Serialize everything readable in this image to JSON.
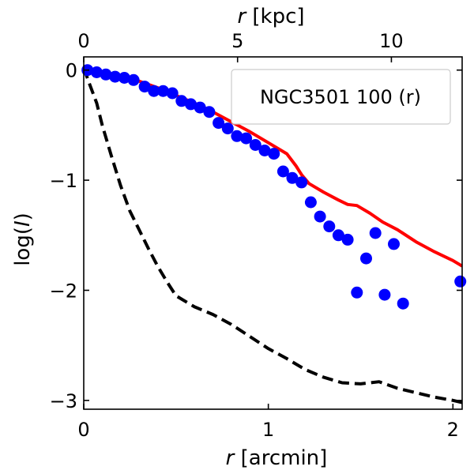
{
  "chart_data": {
    "type": "scatter",
    "xlabel_var": "r",
    "xlabel_unit": " [arcmin]",
    "x2label_var": "r",
    "x2label_unit": " [kpc]",
    "ylabel_prefix": "log(",
    "ylabel_var": "I",
    "ylabel_suffix": ")",
    "xlim": [
      0,
      2.05
    ],
    "ylim": [
      -3.08,
      0.12
    ],
    "x2lim": [
      0,
      12.3
    ],
    "xticks": [
      {
        "value": 0,
        "label": "0"
      },
      {
        "value": 1,
        "label": "1"
      },
      {
        "value": 2,
        "label": "2"
      }
    ],
    "x2ticks": [
      {
        "value": 0,
        "label": "0"
      },
      {
        "value": 5,
        "label": "5"
      },
      {
        "value": 10,
        "label": "10"
      }
    ],
    "yticks": [
      {
        "value": 0,
        "label": "0"
      },
      {
        "value": -1,
        "label": "−1"
      },
      {
        "value": -2,
        "label": "−2"
      },
      {
        "value": -3,
        "label": "−3"
      }
    ],
    "legend_text": "NGC3501 100 (r)",
    "legend_position": "top-right",
    "colors": {
      "points": "#0000ff",
      "model": "#ff0000",
      "psf": "#000000"
    },
    "series": [
      {
        "name": "data",
        "type": "scatter",
        "points": [
          {
            "x": 0.02,
            "y": 0.0
          },
          {
            "x": 0.07,
            "y": -0.02
          },
          {
            "x": 0.12,
            "y": -0.04
          },
          {
            "x": 0.17,
            "y": -0.06
          },
          {
            "x": 0.22,
            "y": -0.07
          },
          {
            "x": 0.27,
            "y": -0.09
          },
          {
            "x": 0.33,
            "y": -0.15
          },
          {
            "x": 0.38,
            "y": -0.19
          },
          {
            "x": 0.43,
            "y": -0.19
          },
          {
            "x": 0.48,
            "y": -0.21
          },
          {
            "x": 0.53,
            "y": -0.28
          },
          {
            "x": 0.58,
            "y": -0.31
          },
          {
            "x": 0.63,
            "y": -0.34
          },
          {
            "x": 0.68,
            "y": -0.38
          },
          {
            "x": 0.73,
            "y": -0.48
          },
          {
            "x": 0.78,
            "y": -0.53
          },
          {
            "x": 0.83,
            "y": -0.6
          },
          {
            "x": 0.88,
            "y": -0.62
          },
          {
            "x": 0.93,
            "y": -0.68
          },
          {
            "x": 0.98,
            "y": -0.73
          },
          {
            "x": 1.03,
            "y": -0.76
          },
          {
            "x": 1.08,
            "y": -0.92
          },
          {
            "x": 1.13,
            "y": -0.98
          },
          {
            "x": 1.18,
            "y": -1.02
          },
          {
            "x": 1.23,
            "y": -1.2
          },
          {
            "x": 1.28,
            "y": -1.33
          },
          {
            "x": 1.33,
            "y": -1.42
          },
          {
            "x": 1.38,
            "y": -1.5
          },
          {
            "x": 1.43,
            "y": -1.54
          },
          {
            "x": 1.48,
            "y": -2.02
          },
          {
            "x": 1.53,
            "y": -1.71
          },
          {
            "x": 1.58,
            "y": -1.48
          },
          {
            "x": 1.63,
            "y": -2.04
          },
          {
            "x": 1.68,
            "y": -1.58
          },
          {
            "x": 1.73,
            "y": -2.12
          },
          {
            "x": 2.04,
            "y": -1.92
          }
        ]
      },
      {
        "name": "model",
        "type": "line",
        "points": [
          {
            "x": 0.0,
            "y": 0.02
          },
          {
            "x": 0.1,
            "y": -0.02
          },
          {
            "x": 0.2,
            "y": -0.06
          },
          {
            "x": 0.3,
            "y": -0.1
          },
          {
            "x": 0.4,
            "y": -0.16
          },
          {
            "x": 0.5,
            "y": -0.23
          },
          {
            "x": 0.6,
            "y": -0.3
          },
          {
            "x": 0.7,
            "y": -0.38
          },
          {
            "x": 0.8,
            "y": -0.47
          },
          {
            "x": 0.9,
            "y": -0.56
          },
          {
            "x": 1.0,
            "y": -0.66
          },
          {
            "x": 1.1,
            "y": -0.76
          },
          {
            "x": 1.15,
            "y": -0.87
          },
          {
            "x": 1.18,
            "y": -0.95
          },
          {
            "x": 1.22,
            "y": -1.03
          },
          {
            "x": 1.3,
            "y": -1.11
          },
          {
            "x": 1.38,
            "y": -1.18
          },
          {
            "x": 1.43,
            "y": -1.22
          },
          {
            "x": 1.48,
            "y": -1.23
          },
          {
            "x": 1.55,
            "y": -1.3
          },
          {
            "x": 1.62,
            "y": -1.38
          },
          {
            "x": 1.7,
            "y": -1.45
          },
          {
            "x": 1.8,
            "y": -1.56
          },
          {
            "x": 1.9,
            "y": -1.65
          },
          {
            "x": 2.0,
            "y": -1.73
          },
          {
            "x": 2.05,
            "y": -1.78
          }
        ]
      },
      {
        "name": "psf",
        "type": "line",
        "dashed": true,
        "points": [
          {
            "x": 0.0,
            "y": 0.02
          },
          {
            "x": 0.03,
            "y": -0.12
          },
          {
            "x": 0.07,
            "y": -0.3
          },
          {
            "x": 0.1,
            "y": -0.5
          },
          {
            "x": 0.15,
            "y": -0.78
          },
          {
            "x": 0.2,
            "y": -1.05
          },
          {
            "x": 0.25,
            "y": -1.28
          },
          {
            "x": 0.3,
            "y": -1.45
          },
          {
            "x": 0.35,
            "y": -1.62
          },
          {
            "x": 0.4,
            "y": -1.78
          },
          {
            "x": 0.45,
            "y": -1.92
          },
          {
            "x": 0.5,
            "y": -2.05
          },
          {
            "x": 0.6,
            "y": -2.15
          },
          {
            "x": 0.7,
            "y": -2.22
          },
          {
            "x": 0.8,
            "y": -2.31
          },
          {
            "x": 0.9,
            "y": -2.42
          },
          {
            "x": 1.0,
            "y": -2.53
          },
          {
            "x": 1.1,
            "y": -2.62
          },
          {
            "x": 1.2,
            "y": -2.72
          },
          {
            "x": 1.3,
            "y": -2.79
          },
          {
            "x": 1.4,
            "y": -2.84
          },
          {
            "x": 1.5,
            "y": -2.85
          },
          {
            "x": 1.6,
            "y": -2.83
          },
          {
            "x": 1.7,
            "y": -2.89
          },
          {
            "x": 1.8,
            "y": -2.93
          },
          {
            "x": 1.9,
            "y": -2.97
          },
          {
            "x": 2.0,
            "y": -3.0
          },
          {
            "x": 2.05,
            "y": -3.02
          }
        ]
      }
    ]
  }
}
